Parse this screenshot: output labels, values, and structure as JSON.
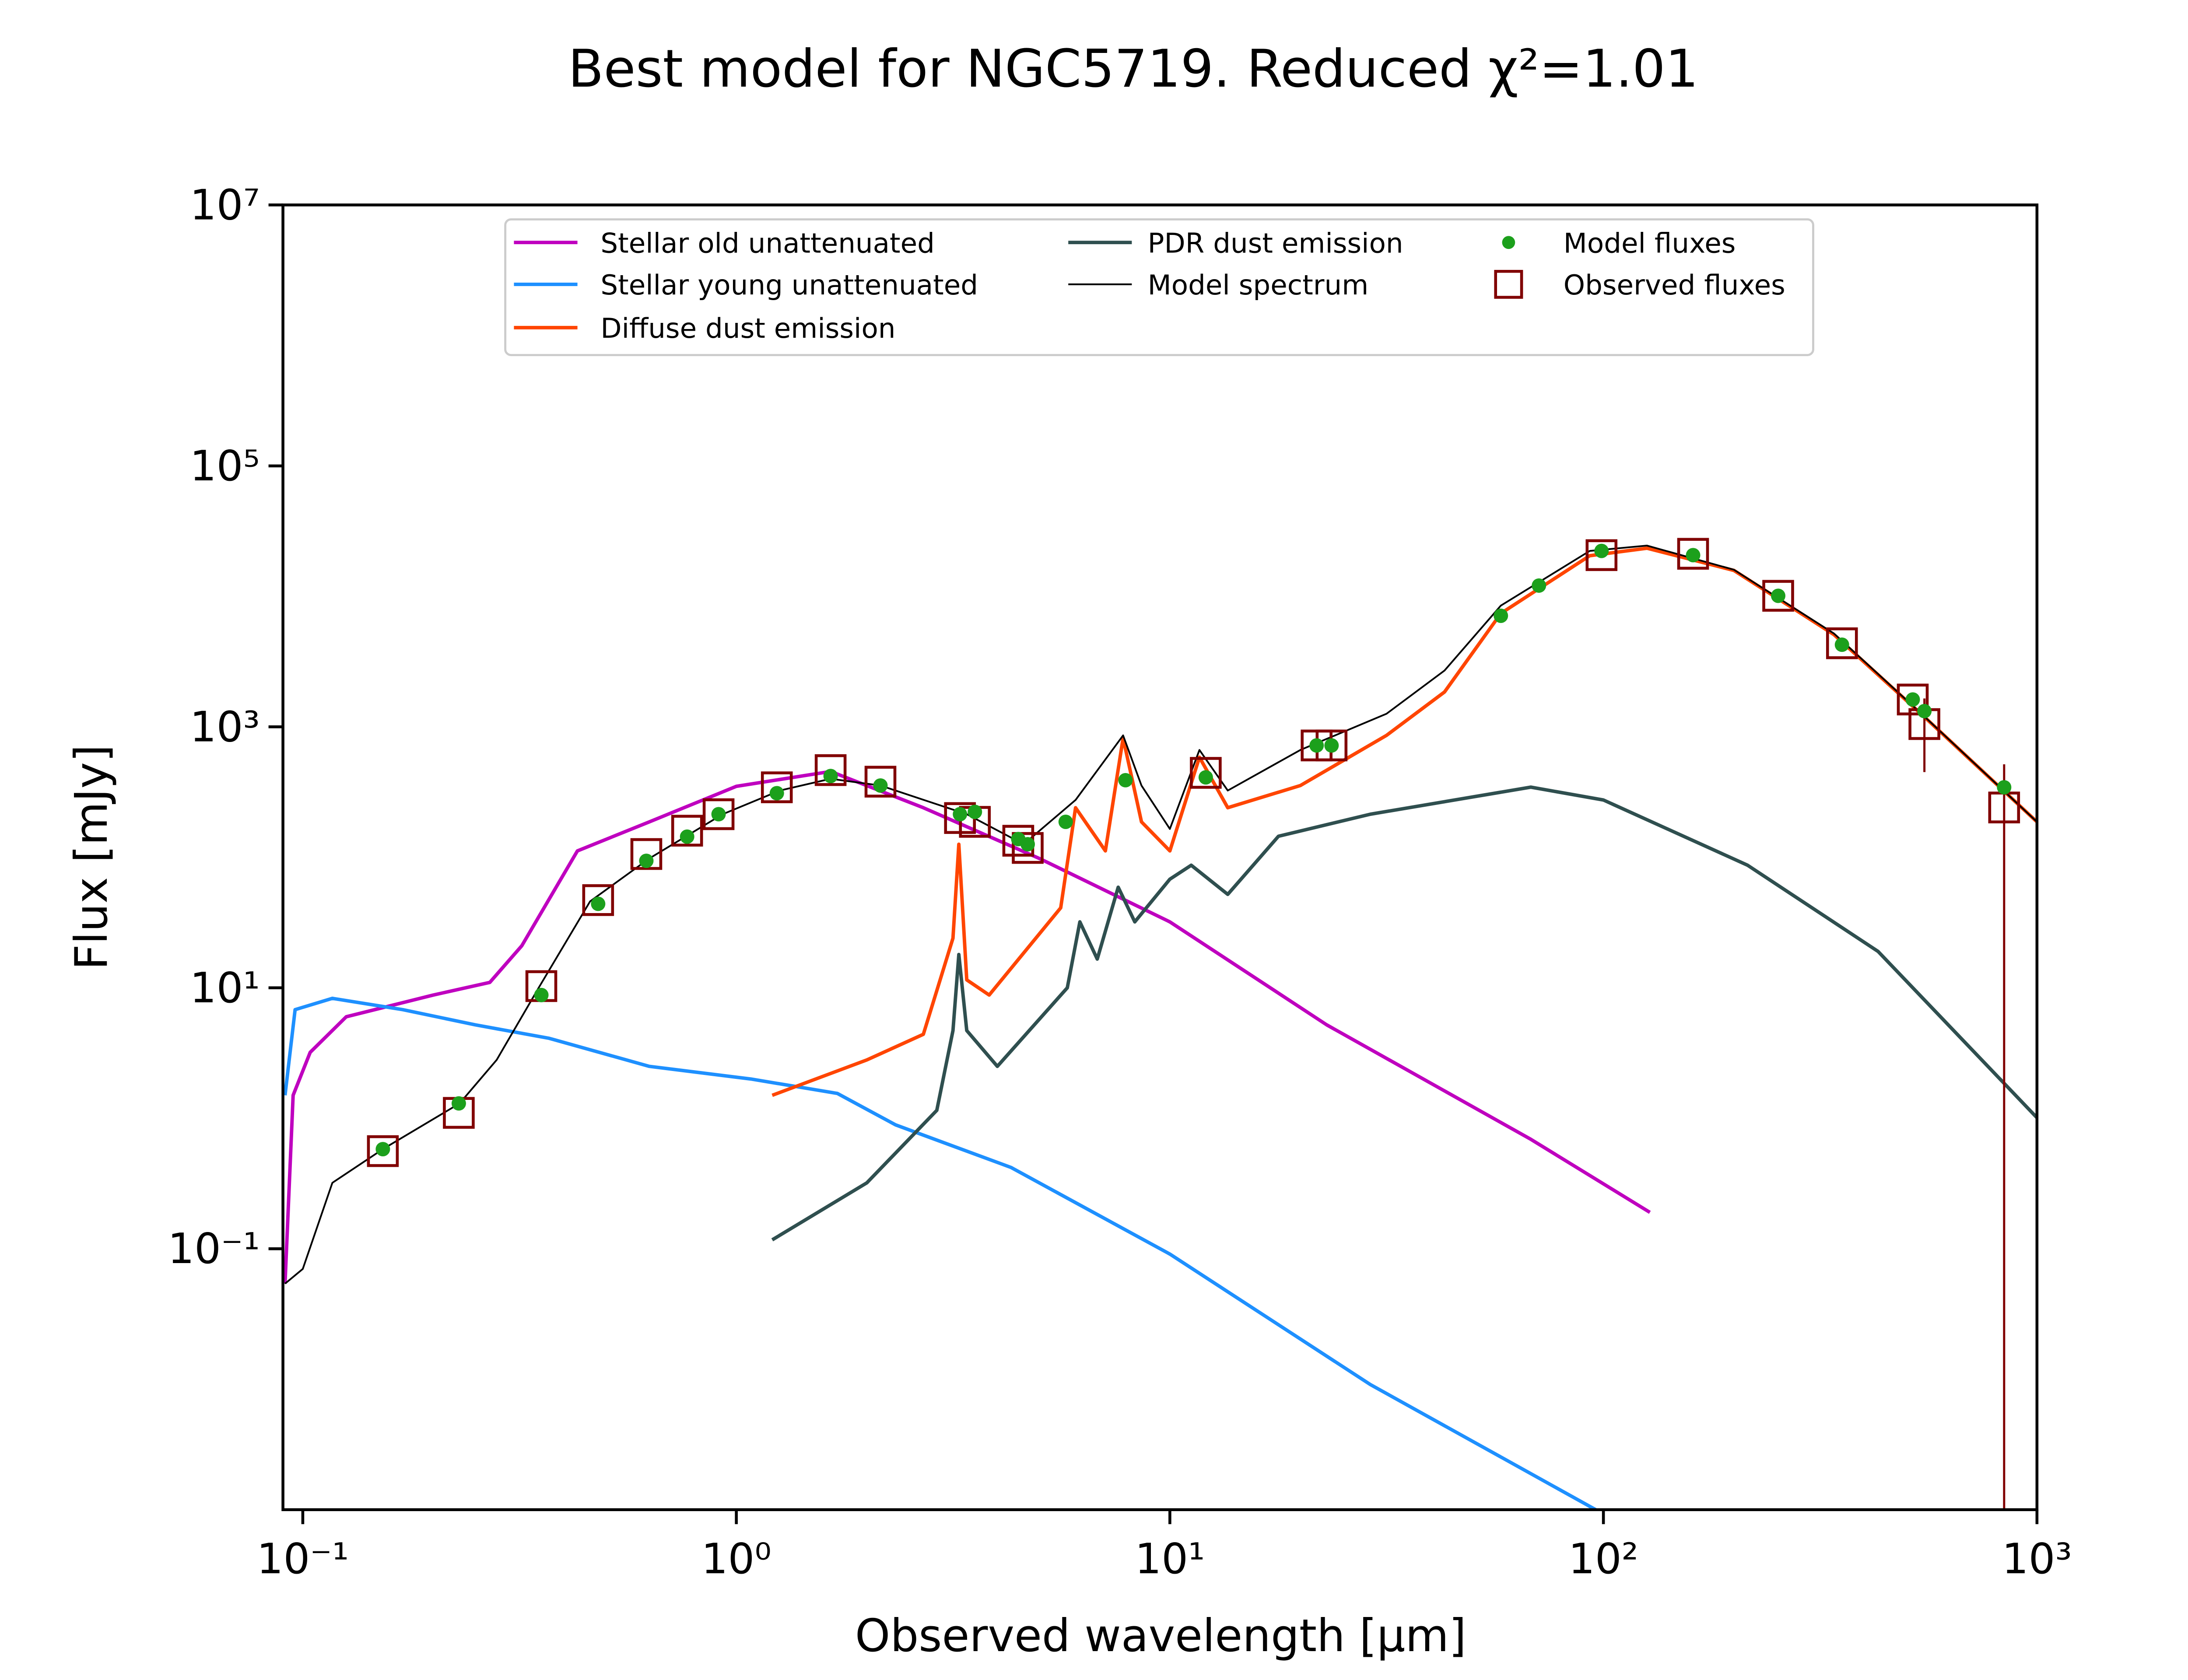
{
  "chart_data": {
    "type": "line",
    "title": "Best model for NGC5719. Reduced χ²=1.01",
    "xlabel": "Observed wavelength [μm]",
    "ylabel": "Flux [mJy]",
    "xscale": "log",
    "yscale": "log",
    "xlim": [
      0.09,
      1000
    ],
    "ylim": [
      0.001,
      10000000
    ],
    "xticks": [
      {
        "value": 0.1,
        "label": "10⁻¹"
      },
      {
        "value": 1,
        "label": "10⁰"
      },
      {
        "value": 10,
        "label": "10¹"
      },
      {
        "value": 100,
        "label": "10²"
      },
      {
        "value": 1000,
        "label": "10³"
      }
    ],
    "yticks": [
      {
        "value": 0.1,
        "label": "10⁻¹"
      },
      {
        "value": 10,
        "label": "10¹"
      },
      {
        "value": 1000,
        "label": "10³"
      },
      {
        "value": 100000,
        "label": "10⁵"
      },
      {
        "value": 10000000,
        "label": "10⁷"
      }
    ],
    "legend": "upper center",
    "series": [
      {
        "name": "Stellar old unattenuated",
        "color": "#bf00bf",
        "type": "line",
        "x": [
          0.091,
          0.095,
          0.104,
          0.126,
          0.2,
          0.27,
          0.32,
          0.43,
          0.63,
          1,
          1.65,
          2.7,
          5,
          10,
          23,
          68,
          128
        ],
        "values": [
          0.054,
          1.5,
          3.2,
          6,
          8.8,
          11,
          21,
          112,
          187,
          350,
          455,
          240,
          98,
          32,
          5.2,
          0.69,
          0.19
        ]
      },
      {
        "name": "Stellar young unattenuated",
        "color": "#1e90ff",
        "type": "line",
        "x": [
          0.091,
          0.096,
          0.117,
          0.17,
          0.25,
          0.37,
          0.63,
          1.08,
          1.71,
          2.33,
          4.3,
          10,
          29,
          96
        ],
        "values": [
          1.5,
          6.8,
          8.3,
          6.8,
          5.2,
          4.1,
          2.5,
          2,
          1.55,
          0.89,
          0.42,
          0.091,
          0.0091,
          0.001
        ]
      },
      {
        "name": "Diffuse dust emission",
        "color": "#ff4500",
        "type": "line",
        "x": [
          1.21,
          2,
          2.7,
          3.16,
          3.26,
          3.4,
          3.83,
          5.6,
          6.06,
          7.1,
          7.8,
          8.6,
          10,
          11.7,
          13.6,
          20,
          31.6,
          43,
          58,
          93,
          126,
          200,
          340,
          540,
          1000
        ],
        "values": [
          1.5,
          2.8,
          4.4,
          24,
          126,
          11.5,
          8.8,
          41,
          240,
          112,
          820,
          187,
          112,
          585,
          240,
          355,
          860,
          1850,
          7400,
          20500,
          23400,
          15800,
          5100,
          1260,
          187
        ]
      },
      {
        "name": "PDR dust emission",
        "color": "#2f4f4f",
        "type": "line",
        "x": [
          1.21,
          2,
          2.9,
          3.16,
          3.26,
          3.4,
          4,
          5.8,
          6.2,
          6.8,
          7.6,
          8.3,
          10,
          11.2,
          13.6,
          17.8,
          29,
          68,
          100,
          215,
          430,
          1000
        ],
        "values": [
          0.117,
          0.32,
          1.15,
          4.7,
          18,
          4.7,
          2.5,
          10,
          32,
          16.6,
          59,
          32,
          68,
          87,
          52,
          145,
          214,
          345,
          275,
          87,
          19,
          1.01
        ]
      },
      {
        "name": "Model spectrum",
        "color": "#000000",
        "type": "line",
        "x": [
          0.091,
          0.1,
          0.117,
          0.153,
          0.23,
          0.28,
          0.35,
          0.46,
          0.63,
          0.93,
          1.26,
          1.65,
          2.15,
          3.4,
          4.6,
          6.06,
          7.8,
          8.6,
          10,
          11.7,
          13.6,
          20,
          31.6,
          43,
          58,
          93,
          126,
          200,
          340,
          540,
          1000
        ],
        "values": [
          0.054,
          0.07,
          0.32,
          0.58,
          1.3,
          2.8,
          10,
          46,
          98,
          214,
          325,
          400,
          355,
          214,
          126,
          275,
          860,
          355,
          165,
          665,
          325,
          665,
          1260,
          2700,
          8500,
          22300,
          24500,
          16000,
          5200,
          1270,
          187
        ]
      },
      {
        "name": "Model fluxes",
        "color": "#1ca01c",
        "type": "scatter",
        "marker": "o",
        "x": [
          0.153,
          0.229,
          0.355,
          0.48,
          0.62,
          0.77,
          0.91,
          1.24,
          1.65,
          2.15,
          3.28,
          3.55,
          4.47,
          4.7,
          5.75,
          7.9,
          12.1,
          21.8,
          23.6,
          58,
          71,
          99,
          161,
          253,
          355,
          517,
          550,
          840
        ],
        "values": [
          0.58,
          1.3,
          8.8,
          44,
          94,
          144,
          214,
          310,
          420,
          355,
          214,
          223,
          138,
          126,
          187,
          390,
          410,
          720,
          720,
          7100,
          12100,
          22300,
          20700,
          10100,
          4260,
          1620,
          1320,
          344
        ]
      },
      {
        "name": "Observed fluxes",
        "color": "#800000",
        "type": "scatter",
        "marker": "s",
        "x": [
          0.153,
          0.229,
          0.355,
          0.48,
          0.62,
          0.77,
          0.91,
          1.24,
          1.65,
          2.15,
          3.28,
          3.55,
          4.47,
          4.7,
          12.1,
          21.8,
          23.6,
          99,
          161,
          253,
          355,
          517,
          550,
          840
        ],
        "values": [
          0.56,
          1.1,
          10.3,
          47,
          106,
          160,
          214,
          344,
          466,
          380,
          200,
          187,
          134,
          118,
          444,
          720,
          720,
          20700,
          21200,
          10100,
          4370,
          1620,
          1050,
          241
        ],
        "errors": [
          null,
          null,
          null,
          null,
          null,
          null,
          null,
          null,
          null,
          null,
          null,
          null,
          null,
          null,
          null,
          null,
          null,
          null,
          null,
          null,
          null,
          null,
          600,
          275
        ]
      }
    ]
  }
}
